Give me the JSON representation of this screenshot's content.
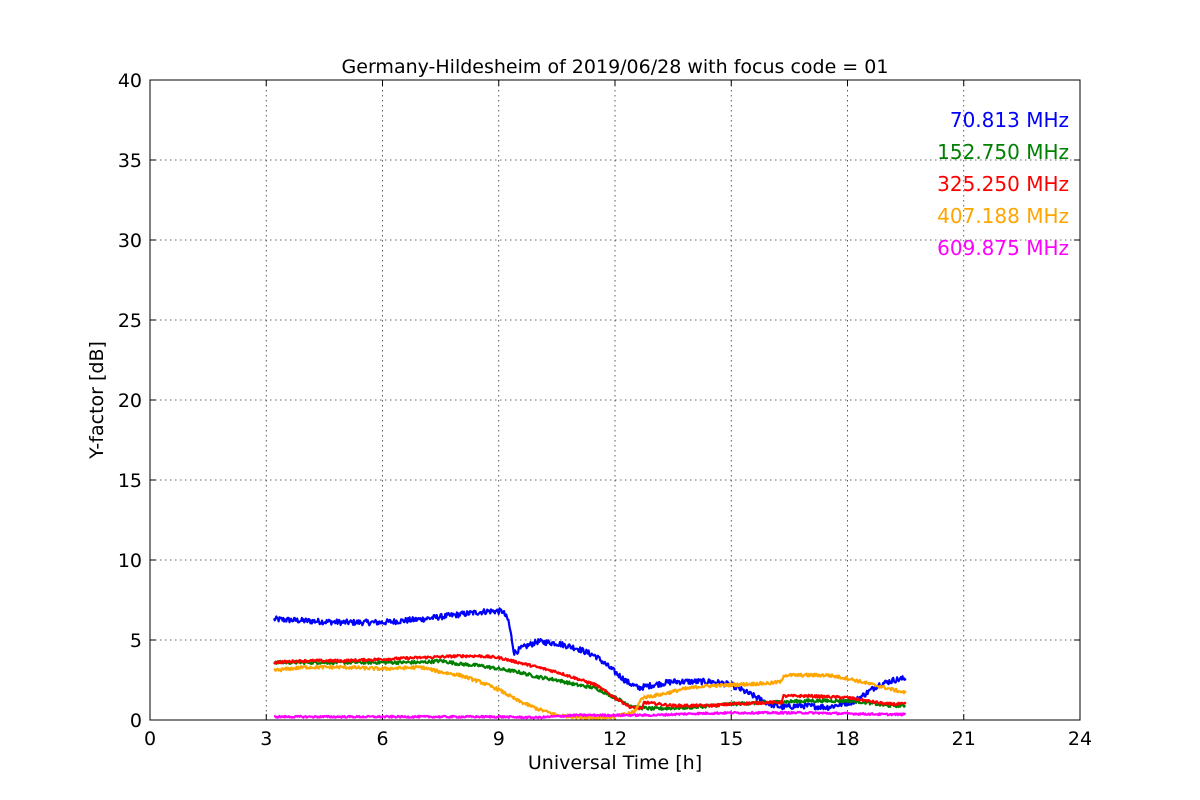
{
  "chart_data": {
    "type": "line",
    "title": "Germany-Hildesheim of 2019/06/28 with focus code = 01",
    "xlabel": "Universal Time [h]",
    "ylabel": "Y-factor [dB]",
    "xlim": [
      0,
      24
    ],
    "ylim": [
      0,
      40
    ],
    "xticks": [
      0,
      3,
      6,
      9,
      12,
      15,
      18,
      21,
      24
    ],
    "yticks": [
      0,
      5,
      10,
      15,
      20,
      25,
      30,
      35,
      40
    ],
    "xtick_labels": [
      "0",
      "3",
      "6",
      "9",
      "12",
      "15",
      "18",
      "21",
      "24"
    ],
    "ytick_labels": [
      "0",
      "5",
      "10",
      "15",
      "20",
      "25",
      "30",
      "35",
      "40"
    ],
    "grid": true,
    "legend_position": "top-right",
    "series": [
      {
        "name": "70.813 MHz",
        "color": "#0000ff",
        "noise": 0.18,
        "points": [
          [
            3.2,
            6.3
          ],
          [
            4,
            6.2
          ],
          [
            5,
            6.1
          ],
          [
            6,
            6.1
          ],
          [
            7,
            6.3
          ],
          [
            8,
            6.6
          ],
          [
            8.7,
            6.8
          ],
          [
            9.1,
            6.8
          ],
          [
            9.25,
            6.2
          ],
          [
            9.4,
            4.2
          ],
          [
            9.6,
            4.5
          ],
          [
            10,
            4.9
          ],
          [
            10.5,
            4.8
          ],
          [
            11,
            4.5
          ],
          [
            11.5,
            4.0
          ],
          [
            12,
            3.0
          ],
          [
            12.3,
            2.4
          ],
          [
            12.6,
            2.0
          ],
          [
            13,
            2.2
          ],
          [
            13.5,
            2.4
          ],
          [
            14.5,
            2.4
          ],
          [
            15,
            2.2
          ],
          [
            15.5,
            1.6
          ],
          [
            16,
            1.0
          ],
          [
            16.3,
            0.8
          ],
          [
            16.8,
            0.9
          ],
          [
            17.5,
            0.8
          ],
          [
            18.2,
            1.2
          ],
          [
            18.8,
            2.2
          ],
          [
            19.2,
            2.5
          ],
          [
            19.5,
            2.6
          ]
        ]
      },
      {
        "name": "152.750 MHz",
        "color": "#008000",
        "noise": 0.1,
        "points": [
          [
            3.2,
            3.6
          ],
          [
            4,
            3.6
          ],
          [
            5,
            3.6
          ],
          [
            6,
            3.6
          ],
          [
            7,
            3.6
          ],
          [
            7.5,
            3.7
          ],
          [
            8,
            3.5
          ],
          [
            8.5,
            3.4
          ],
          [
            9,
            3.2
          ],
          [
            9.5,
            3.0
          ],
          [
            10,
            2.7
          ],
          [
            10.5,
            2.5
          ],
          [
            11,
            2.2
          ],
          [
            11.5,
            2.0
          ],
          [
            12,
            1.4
          ],
          [
            12.5,
            0.8
          ],
          [
            13,
            0.7
          ],
          [
            13.5,
            0.75
          ],
          [
            14,
            0.8
          ],
          [
            15,
            1.0
          ],
          [
            16,
            1.1
          ],
          [
            17,
            1.2
          ],
          [
            18,
            1.2
          ],
          [
            18.5,
            1.1
          ],
          [
            19,
            0.9
          ],
          [
            19.5,
            0.9
          ]
        ]
      },
      {
        "name": "325.250 MHz",
        "color": "#ff0000",
        "noise": 0.08,
        "points": [
          [
            3.2,
            3.6
          ],
          [
            4,
            3.7
          ],
          [
            5,
            3.7
          ],
          [
            6,
            3.8
          ],
          [
            7,
            3.9
          ],
          [
            8,
            4.0
          ],
          [
            8.5,
            4.0
          ],
          [
            9,
            3.9
          ],
          [
            9.5,
            3.6
          ],
          [
            10,
            3.3
          ],
          [
            10.5,
            3.0
          ],
          [
            11,
            2.6
          ],
          [
            11.5,
            2.2
          ],
          [
            12,
            1.4
          ],
          [
            12.4,
            0.8
          ],
          [
            12.7,
            0.7
          ],
          [
            12.75,
            1.1
          ],
          [
            13.5,
            0.9
          ],
          [
            14,
            0.9
          ],
          [
            14.5,
            0.9
          ],
          [
            15,
            1.0
          ],
          [
            16,
            1.1
          ],
          [
            16.3,
            1.1
          ],
          [
            16.35,
            1.5
          ],
          [
            17,
            1.5
          ],
          [
            18,
            1.4
          ],
          [
            18.5,
            1.2
          ],
          [
            19,
            1.0
          ],
          [
            19.5,
            1.0
          ]
        ]
      },
      {
        "name": "407.188 MHz",
        "color": "#ffa500",
        "noise": 0.1,
        "points": [
          [
            3.2,
            3.1
          ],
          [
            4,
            3.3
          ],
          [
            5,
            3.3
          ],
          [
            6,
            3.2
          ],
          [
            7,
            3.3
          ],
          [
            7.5,
            3.0
          ],
          [
            8,
            2.8
          ],
          [
            8.5,
            2.4
          ],
          [
            9,
            1.9
          ],
          [
            9.5,
            1.2
          ],
          [
            10,
            0.7
          ],
          [
            10.5,
            0.3
          ],
          [
            11,
            0.2
          ],
          [
            11.5,
            0.15
          ],
          [
            12,
            0.2
          ],
          [
            12.5,
            0.5
          ],
          [
            12.7,
            1.4
          ],
          [
            13.2,
            1.6
          ],
          [
            13.7,
            1.9
          ],
          [
            14.2,
            2.1
          ],
          [
            15,
            2.2
          ],
          [
            16,
            2.3
          ],
          [
            16.3,
            2.4
          ],
          [
            16.35,
            2.8
          ],
          [
            17,
            2.8
          ],
          [
            17.5,
            2.8
          ],
          [
            18,
            2.6
          ],
          [
            18.5,
            2.3
          ],
          [
            19,
            2.0
          ],
          [
            19.5,
            1.7
          ]
        ]
      },
      {
        "name": "609.875 MHz",
        "color": "#ff00ff",
        "noise": 0.06,
        "points": [
          [
            3.2,
            0.2
          ],
          [
            5,
            0.2
          ],
          [
            7,
            0.2
          ],
          [
            9,
            0.2
          ],
          [
            10,
            0.15
          ],
          [
            11,
            0.3
          ],
          [
            12,
            0.3
          ],
          [
            13,
            0.3
          ],
          [
            14,
            0.4
          ],
          [
            15,
            0.45
          ],
          [
            16,
            0.45
          ],
          [
            17,
            0.45
          ],
          [
            18,
            0.4
          ],
          [
            19,
            0.35
          ],
          [
            19.5,
            0.35
          ]
        ]
      }
    ]
  }
}
